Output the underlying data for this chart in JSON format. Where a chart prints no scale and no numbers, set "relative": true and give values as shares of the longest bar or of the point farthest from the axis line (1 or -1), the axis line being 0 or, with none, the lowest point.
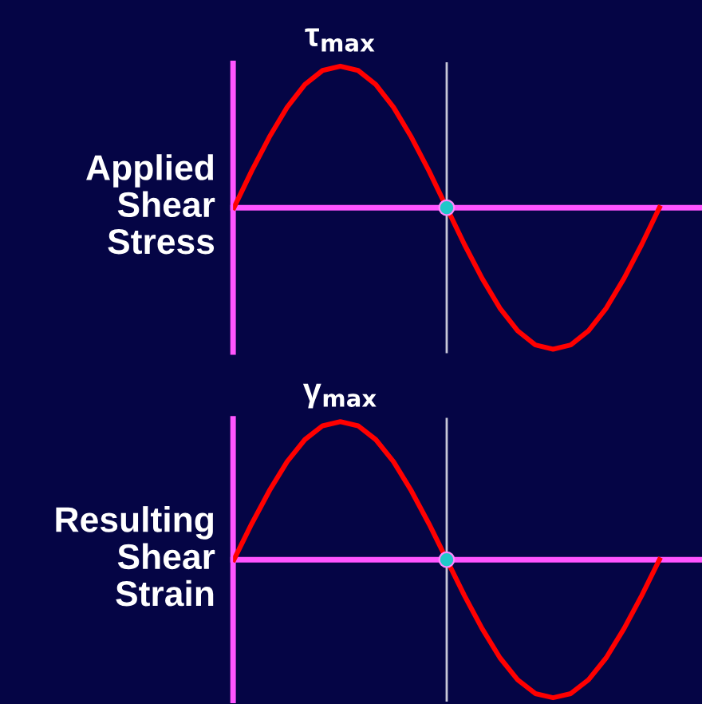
{
  "chart_data": [
    {
      "type": "line",
      "relative": true,
      "ylabel": "Applied\nShear\nStress",
      "categories": [
        null,
        null,
        null,
        null,
        null,
        null,
        null,
        null,
        null,
        null,
        null,
        null,
        null,
        null,
        null,
        null,
        null,
        null,
        null,
        null,
        null,
        null,
        null,
        null,
        null
      ],
      "series": [
        {
          "color": "#ff0000",
          "values": [
            0,
            0.26,
            0.5,
            0.71,
            0.87,
            0.97,
            1,
            0.97,
            0.87,
            0.71,
            0.5,
            0.26,
            0,
            -0.26,
            -0.5,
            -0.71,
            -0.87,
            -0.97,
            -1,
            -0.97,
            -0.87,
            -0.71,
            -0.5,
            -0.26,
            0
          ]
        }
      ],
      "ref_lines": [
        {
          "axis": "y",
          "value": 0,
          "color": "#ff55ff"
        }
      ],
      "annotations": [
        "τ$_{max}$"
      ]
    },
    {
      "type": "line",
      "relative": true,
      "ylabel": "Resulting\nShear\nStrain",
      "categories": [
        null,
        null,
        null,
        null,
        null,
        null,
        null,
        null,
        null,
        null,
        null,
        null,
        null,
        null,
        null,
        null,
        null,
        null,
        null,
        null,
        null,
        null,
        null,
        null,
        null
      ],
      "series": [
        {
          "color": "#ff0000",
          "values": [
            0,
            0.26,
            0.5,
            0.71,
            0.87,
            0.97,
            1,
            0.97,
            0.87,
            0.71,
            0.5,
            0.26,
            0,
            -0.26,
            -0.5,
            -0.71,
            -0.87,
            -0.97,
            -1,
            -0.97,
            -0.87,
            -0.71,
            -0.5,
            -0.26,
            0
          ]
        }
      ],
      "ref_lines": [
        {
          "axis": "y",
          "value": 0,
          "color": "#ff55ff"
        }
      ],
      "annotations": [
        "γ$_{max}$"
      ]
    }
  ]
}
